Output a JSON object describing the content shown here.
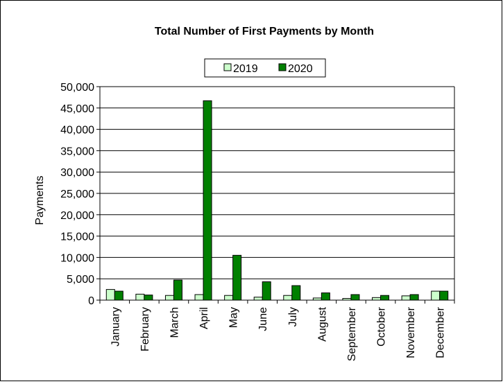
{
  "chart_data": {
    "type": "bar",
    "title": "Total Number of First Payments by Month",
    "xlabel": "",
    "ylabel": "Payments",
    "ylim": [
      0,
      50000
    ],
    "yticks": [
      0,
      5000,
      10000,
      15000,
      20000,
      25000,
      30000,
      35000,
      40000,
      45000,
      50000
    ],
    "ytick_labels": [
      "0",
      "5,000",
      "10,000",
      "15,000",
      "20,000",
      "25,000",
      "30,000",
      "35,000",
      "40,000",
      "45,000",
      "50,000"
    ],
    "grid": "horizontal",
    "legend_position": "top-center",
    "categories": [
      "January",
      "February",
      "March",
      "April",
      "May",
      "June",
      "July",
      "August",
      "September",
      "October",
      "November",
      "December"
    ],
    "series": [
      {
        "name": "2019",
        "color": "#ccffcc",
        "values": [
          2500,
          1400,
          1100,
          1300,
          1100,
          700,
          1100,
          500,
          400,
          600,
          1000,
          2100
        ]
      },
      {
        "name": "2020",
        "color": "#008000",
        "values": [
          2100,
          1200,
          4700,
          46700,
          10500,
          4300,
          3400,
          1700,
          1300,
          1100,
          1300,
          2100
        ]
      }
    ]
  }
}
